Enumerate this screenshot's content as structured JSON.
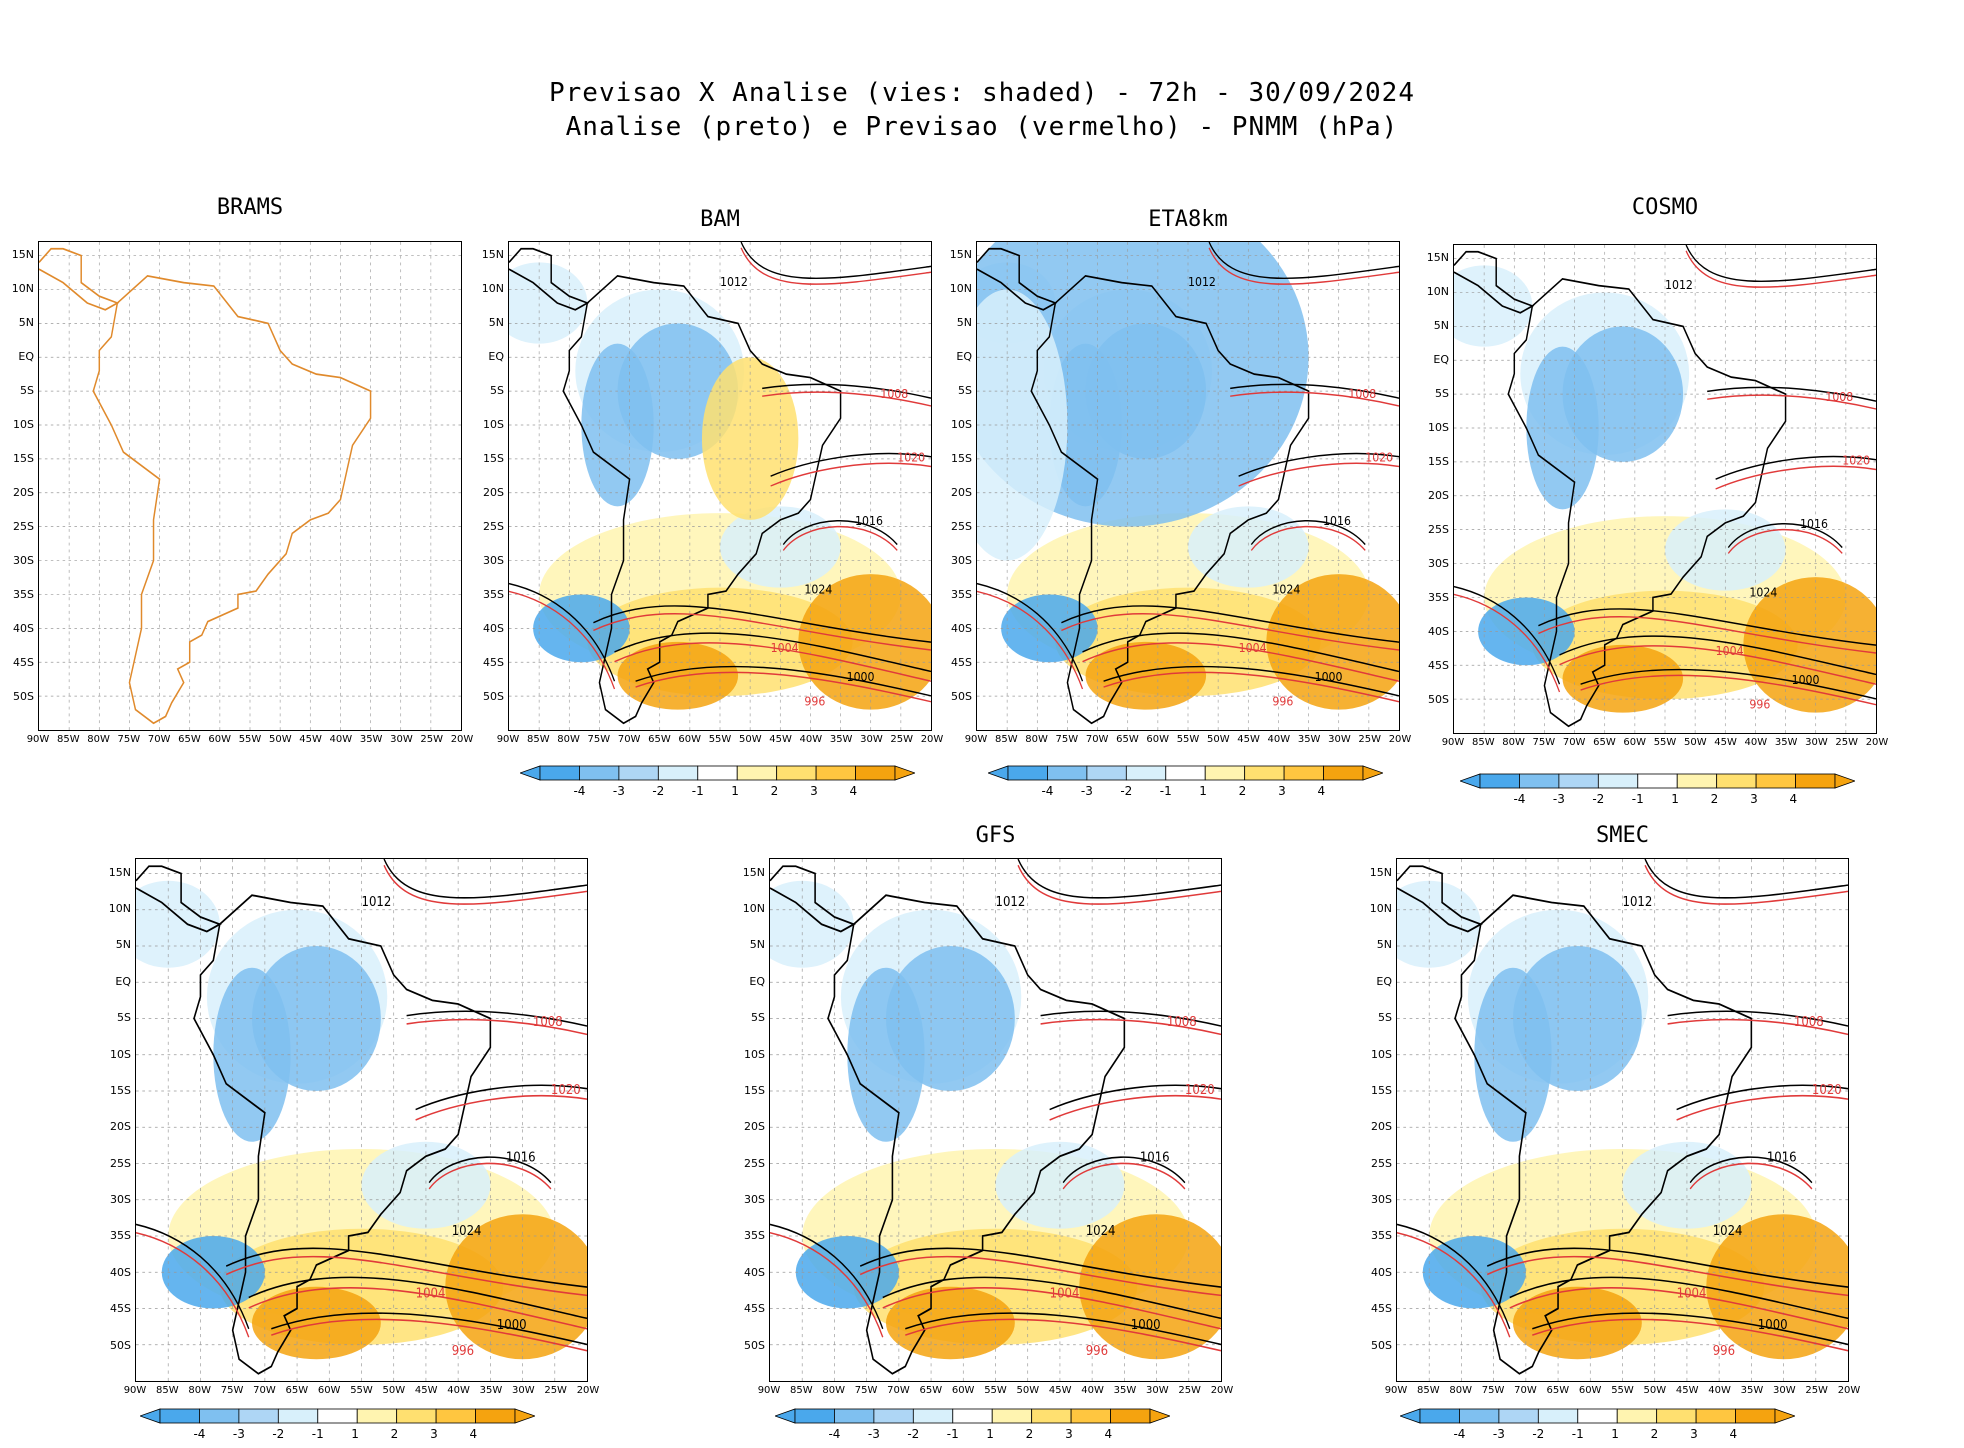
{
  "header": {
    "line1": "Previsao X Analise (vies: shaded) - 72h - 30/09/2024",
    "line2": "Analise (preto) e Previsao (vermelho) - PNMM (hPa)"
  },
  "axes": {
    "lat_labels": [
      "15N",
      "10N",
      "5N",
      "EQ",
      "5S",
      "10S",
      "15S",
      "20S",
      "25S",
      "30S",
      "35S",
      "40S",
      "45S",
      "50S"
    ],
    "lon_labels": [
      "90W",
      "85W",
      "80W",
      "75W",
      "70W",
      "65W",
      "60W",
      "55W",
      "50W",
      "45W",
      "40W",
      "35W",
      "30W",
      "25W",
      "20W"
    ]
  },
  "colorbar": {
    "labels": [
      "-4",
      "-3",
      "-2",
      "-1",
      "1",
      "2",
      "3",
      "4"
    ],
    "colors": [
      "#4aa8ec",
      "#7fc0f0",
      "#aed6f5",
      "#d8f0fb",
      "#ffffff",
      "#fff4b0",
      "#ffe070",
      "#ffc640",
      "#f5a30f"
    ]
  },
  "panels": [
    {
      "name": "BRAMS",
      "has_data": false,
      "contour_labels": []
    },
    {
      "name": "BAM",
      "has_data": true,
      "contour_labels": [
        "1012",
        "1008",
        "1016",
        "1020",
        "1024",
        "1004",
        "1000",
        "996"
      ]
    },
    {
      "name": "ETA8km",
      "has_data": true,
      "contour_labels": [
        "1012",
        "1008",
        "1016",
        "1020",
        "1024",
        "1004",
        "1000",
        "996"
      ]
    },
    {
      "name": "COSMO",
      "has_data": true,
      "contour_labels": [
        "1012",
        "1008",
        "1016",
        "1020",
        "1024",
        "1004",
        "1000",
        "996"
      ]
    },
    {
      "name": "",
      "has_data": true,
      "contour_labels": [
        "1012",
        "1008",
        "1016",
        "1020",
        "1024",
        "1004",
        "1000",
        "996"
      ]
    },
    {
      "name": "GFS",
      "has_data": true,
      "contour_labels": [
        "1012",
        "1008",
        "1016",
        "1020",
        "1024",
        "1004",
        "1000",
        "996"
      ]
    },
    {
      "name": "SMEC",
      "has_data": true,
      "contour_labels": [
        "1012",
        "1008",
        "1016",
        "1020",
        "1024",
        "1004",
        "1000",
        "996"
      ]
    }
  ]
}
